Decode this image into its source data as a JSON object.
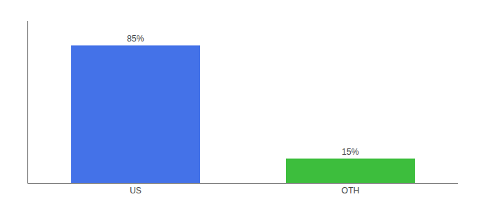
{
  "chart_data": {
    "type": "bar",
    "categories": [
      "US",
      "OTH"
    ],
    "values": [
      85,
      15
    ],
    "colors": [
      "#4472e8",
      "#3dbe3d"
    ],
    "value_labels": [
      "85%",
      "15%"
    ],
    "data_labels": true,
    "ylim": [
      0,
      100
    ],
    "grid": false,
    "tick_labels": "x"
  }
}
